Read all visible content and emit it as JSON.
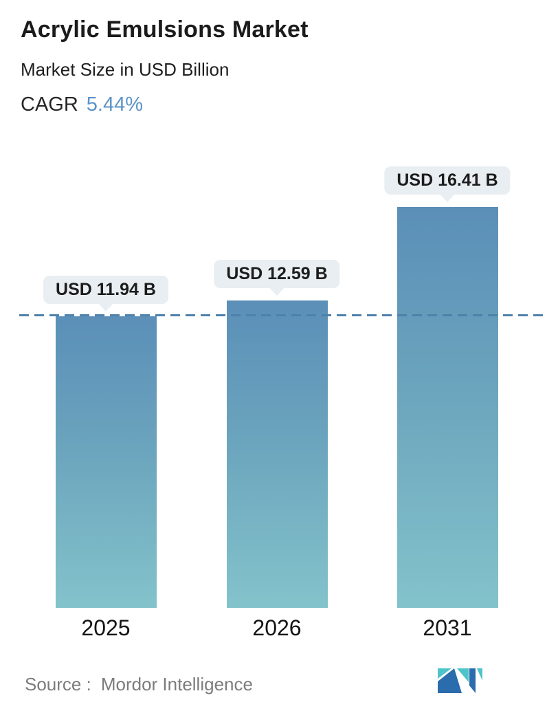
{
  "header": {
    "title": "Acrylic Emulsions Market",
    "subtitle": "Market Size in USD Billion",
    "cagr_label": "CAGR",
    "cagr_value": "5.44%"
  },
  "chart_data": {
    "type": "bar",
    "title": "Acrylic Emulsions Market",
    "subtitle": "Market Size in USD Billion",
    "cagr_percent": 5.44,
    "categories": [
      "2025",
      "2026",
      "2031"
    ],
    "values": [
      11.94,
      12.59,
      16.41
    ],
    "value_labels": [
      "USD 11.94 B",
      "USD 12.59 B",
      "USD 16.41 B"
    ],
    "unit": "USD Billion",
    "xlabel": "",
    "ylabel": "Market Size in USD Billion",
    "ylim": [
      0,
      17.5
    ],
    "grid": false,
    "legend": "none",
    "reference_line": {
      "at_value": 11.94,
      "style": "dashed"
    }
  },
  "footer": {
    "source_label": "Source :",
    "source_value": "Mordor Intelligence",
    "logo_name": "mordor-intelligence-logo"
  },
  "colors": {
    "accent_blue": "#5b93c7",
    "bar_gradient_top": "#5b8fb8",
    "bar_gradient_bottom": "#83c3cb",
    "dashed_line": "#4e81ab",
    "label_pill_bg": "#e8eef1",
    "text_dark": "#1b1b1b",
    "source_gray": "#7c7c7c",
    "logo_teal": "#4ec4c9",
    "logo_blue": "#2b6cad"
  }
}
